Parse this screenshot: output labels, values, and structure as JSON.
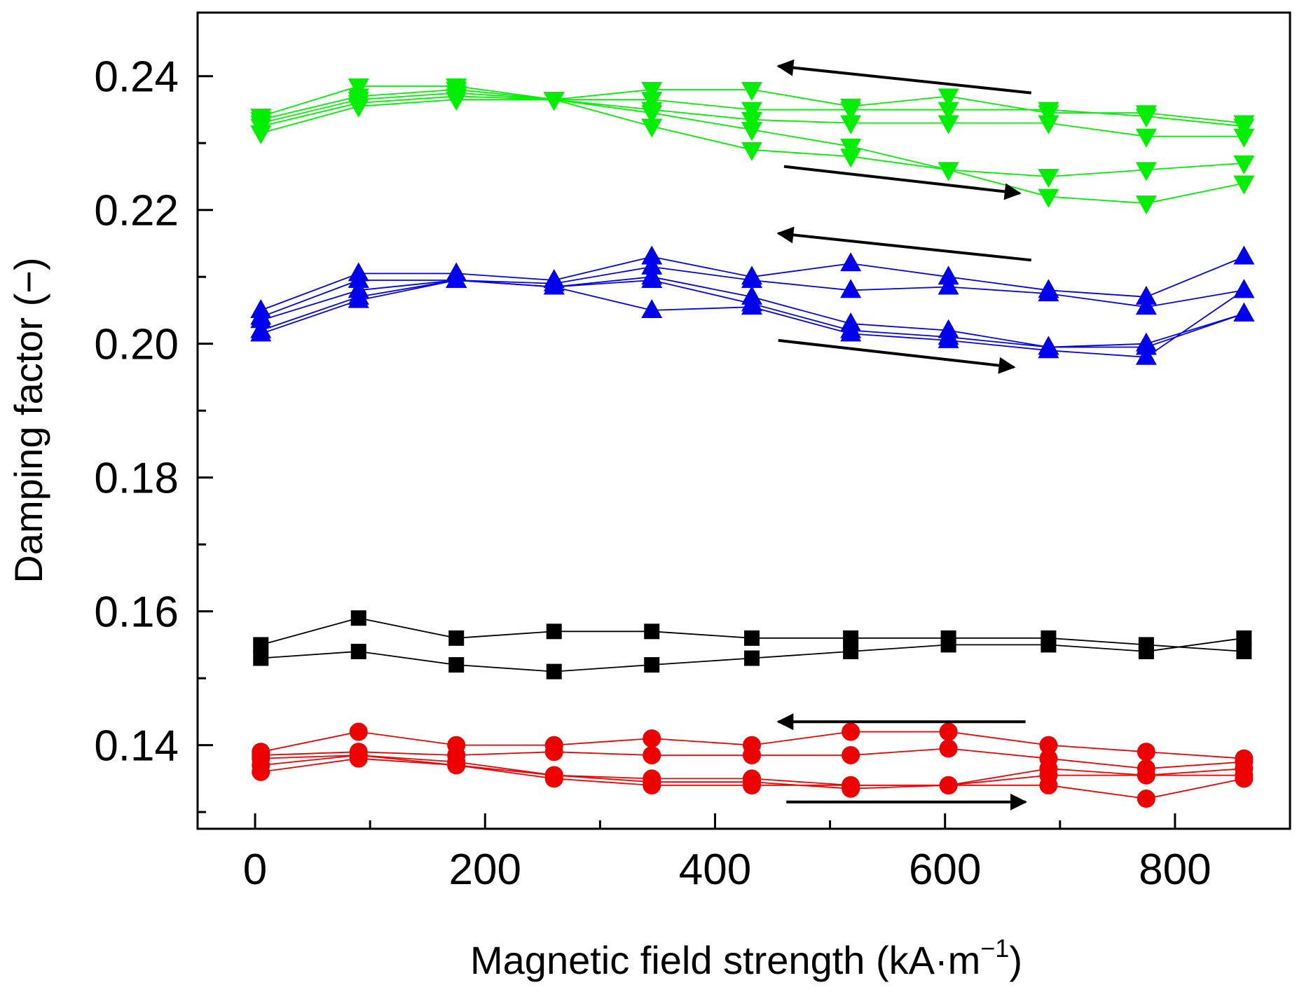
{
  "chart_data": {
    "type": "line",
    "xlabel": "Magnetic field strength (kA·m",
    "xlabel_sup": "−1",
    "xlabel_end": ")",
    "ylabel": "Damping factor (−)",
    "xlim": [
      -50,
      900
    ],
    "ylim": [
      0.1275,
      0.2495
    ],
    "xticks": [
      0,
      200,
      400,
      600,
      800
    ],
    "xtick_labels": [
      "0",
      "200",
      "400",
      "600",
      "800"
    ],
    "yticks": [
      0.14,
      0.16,
      0.18,
      0.2,
      0.22,
      0.24
    ],
    "ytick_labels": [
      "0.14",
      "0.16",
      "0.18",
      "0.20",
      "0.22",
      "0.24"
    ],
    "grid": false,
    "x": [
      5,
      90,
      175,
      260,
      345,
      432,
      518,
      603,
      690,
      775,
      860
    ],
    "series": [
      {
        "marker": "triangle-down",
        "color": "#00ee00",
        "values": [
          0.234,
          0.2385,
          0.2385,
          0.2365,
          0.238,
          0.238,
          0.2355,
          0.237,
          0.2345,
          0.2345,
          0.233
        ]
      },
      {
        "marker": "triangle-down",
        "color": "#00ee00",
        "values": [
          0.2335,
          0.237,
          0.238,
          0.2365,
          0.2365,
          0.235,
          0.235,
          0.235,
          0.235,
          0.234,
          0.2325
        ]
      },
      {
        "marker": "triangle-down",
        "color": "#00ee00",
        "values": [
          0.233,
          0.2365,
          0.2375,
          0.2365,
          0.235,
          0.2335,
          0.233,
          0.233,
          0.233,
          0.231,
          0.231
        ]
      },
      {
        "marker": "triangle-down",
        "color": "#00ee00",
        "values": [
          0.2325,
          0.236,
          0.237,
          0.2365,
          0.2345,
          0.232,
          0.2295,
          0.226,
          0.225,
          0.226,
          0.227
        ]
      },
      {
        "marker": "triangle-down",
        "color": "#00ee00",
        "values": [
          0.2315,
          0.2355,
          0.2365,
          0.2365,
          0.2325,
          0.229,
          0.228,
          0.226,
          0.222,
          0.221,
          0.224
        ]
      },
      {
        "marker": "triangle-up",
        "color": "#0000ee",
        "values": [
          0.205,
          0.2105,
          0.2105,
          0.2095,
          0.213,
          0.21,
          0.212,
          0.21,
          0.208,
          0.207,
          0.213
        ]
      },
      {
        "marker": "triangle-up",
        "color": "#0000ee",
        "values": [
          0.204,
          0.2095,
          0.2095,
          0.209,
          0.2115,
          0.2095,
          0.208,
          0.2085,
          0.2075,
          0.2055,
          0.208
        ]
      },
      {
        "marker": "triangle-up",
        "color": "#0000ee",
        "values": [
          0.2035,
          0.208,
          0.2095,
          0.2085,
          0.21,
          0.207,
          0.203,
          0.202,
          0.1995,
          0.2,
          0.2045
        ]
      },
      {
        "marker": "triangle-up",
        "color": "#0000ee",
        "values": [
          0.202,
          0.207,
          0.2095,
          0.2085,
          0.2095,
          0.206,
          0.202,
          0.201,
          0.1995,
          0.1995,
          0.2045
        ]
      },
      {
        "marker": "triangle-up",
        "color": "#0000ee",
        "values": [
          0.2015,
          0.2065,
          0.2095,
          0.2085,
          0.205,
          0.2055,
          0.2015,
          0.2005,
          0.199,
          0.198,
          0.208
        ]
      },
      {
        "marker": "square",
        "color": "#000000",
        "values": [
          0.155,
          0.159,
          0.156,
          0.157,
          0.157,
          0.156,
          0.156,
          0.156,
          0.156,
          0.155,
          0.154
        ]
      },
      {
        "marker": "square",
        "color": "#000000",
        "values": [
          0.153,
          0.154,
          0.152,
          0.151,
          0.152,
          0.153,
          0.154,
          0.155,
          0.155,
          0.154,
          0.156
        ]
      },
      {
        "marker": "circle",
        "color": "#ee0000",
        "values": [
          0.139,
          0.142,
          0.14,
          0.14,
          0.141,
          0.14,
          0.142,
          0.142,
          0.14,
          0.139,
          0.138
        ]
      },
      {
        "marker": "circle",
        "color": "#ee0000",
        "values": [
          0.1385,
          0.139,
          0.1385,
          0.139,
          0.1385,
          0.1385,
          0.1385,
          0.1395,
          0.138,
          0.1365,
          0.1375
        ]
      },
      {
        "marker": "circle",
        "color": "#ee0000",
        "values": [
          0.138,
          0.1385,
          0.1375,
          0.1355,
          0.135,
          0.135,
          0.134,
          0.134,
          0.1365,
          0.1355,
          0.1365
        ]
      },
      {
        "marker": "circle",
        "color": "#ee0000",
        "values": [
          0.137,
          0.1385,
          0.137,
          0.1355,
          0.1345,
          0.1345,
          0.1335,
          0.134,
          0.1355,
          0.1355,
          0.1355
        ]
      },
      {
        "marker": "circle",
        "color": "#ee0000",
        "values": [
          0.136,
          0.138,
          0.137,
          0.135,
          0.134,
          0.134,
          0.134,
          0.134,
          0.134,
          0.132,
          0.135
        ]
      }
    ],
    "arrows": [
      {
        "from": [
          675,
          0.2375
        ],
        "to": [
          455,
          0.2415
        ]
      },
      {
        "from": [
          460,
          0.2265
        ],
        "to": [
          665,
          0.2225
        ]
      },
      {
        "from": [
          675,
          0.2125
        ],
        "to": [
          455,
          0.2165
        ]
      },
      {
        "from": [
          455,
          0.2005
        ],
        "to": [
          660,
          0.1965
        ]
      },
      {
        "from": [
          670,
          0.1435
        ],
        "to": [
          455,
          0.1435
        ]
      },
      {
        "from": [
          462,
          0.1315
        ],
        "to": [
          670,
          0.1315
        ]
      }
    ]
  }
}
